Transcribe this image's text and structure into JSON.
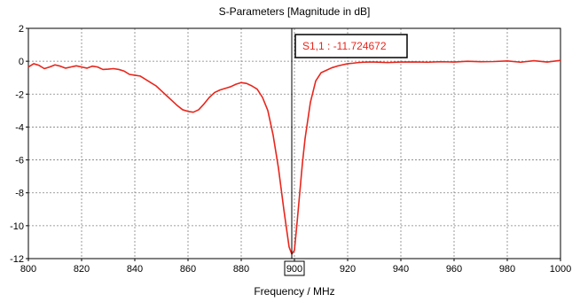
{
  "chart_data": {
    "type": "line",
    "title": "S-Parameters [Magnitude in dB]",
    "xlabel": "Frequency / MHz",
    "ylabel": "",
    "xlim": [
      800,
      1000
    ],
    "ylim": [
      -12,
      2
    ],
    "xticks": [
      800,
      820,
      840,
      860,
      880,
      900,
      920,
      940,
      960,
      980,
      1000
    ],
    "yticks": [
      2,
      0,
      -2,
      -4,
      -6,
      -8,
      -10,
      -12
    ],
    "grid": true,
    "highlighted_xtick": 900,
    "series": [
      {
        "color": "#e8261c",
        "x": [
          800,
          802,
          804,
          806,
          808,
          810,
          812,
          814,
          816,
          818,
          820,
          822,
          824,
          826,
          828,
          830,
          832,
          834,
          836,
          838,
          840,
          842,
          844,
          846,
          848,
          850,
          852,
          854,
          856,
          858,
          860,
          862,
          864,
          866,
          868,
          870,
          872,
          874,
          876,
          878,
          880,
          882,
          884,
          886,
          888,
          890,
          892,
          894,
          896,
          898,
          899,
          900,
          901,
          902,
          903,
          904,
          906,
          908,
          910,
          912,
          914,
          916,
          918,
          920,
          922,
          924,
          926,
          928,
          930,
          935,
          940,
          945,
          950,
          955,
          960,
          965,
          970,
          975,
          980,
          985,
          990,
          995,
          1000
        ],
        "y": [
          -0.35,
          -0.15,
          -0.25,
          -0.45,
          -0.35,
          -0.22,
          -0.3,
          -0.42,
          -0.35,
          -0.28,
          -0.35,
          -0.42,
          -0.3,
          -0.35,
          -0.5,
          -0.48,
          -0.45,
          -0.5,
          -0.6,
          -0.8,
          -0.85,
          -0.9,
          -1.1,
          -1.3,
          -1.5,
          -1.8,
          -2.1,
          -2.4,
          -2.7,
          -2.95,
          -3.05,
          -3.1,
          -2.95,
          -2.6,
          -2.2,
          -1.9,
          -1.75,
          -1.65,
          -1.55,
          -1.4,
          -1.3,
          -1.35,
          -1.5,
          -1.7,
          -2.2,
          -3.0,
          -4.5,
          -6.5,
          -9.0,
          -11.3,
          -11.724672,
          -11.5,
          -9.8,
          -8.0,
          -6.2,
          -4.7,
          -2.5,
          -1.2,
          -0.7,
          -0.55,
          -0.4,
          -0.3,
          -0.22,
          -0.15,
          -0.12,
          -0.08,
          -0.06,
          -0.05,
          -0.05,
          -0.08,
          -0.05,
          -0.04,
          -0.06,
          -0.03,
          -0.05,
          0.0,
          -0.03,
          -0.02,
          0.02,
          -0.06,
          0.03,
          -0.05,
          0.05
        ]
      }
    ],
    "marker": {
      "x": 899,
      "label": "S1,1 : -11.724672"
    }
  }
}
